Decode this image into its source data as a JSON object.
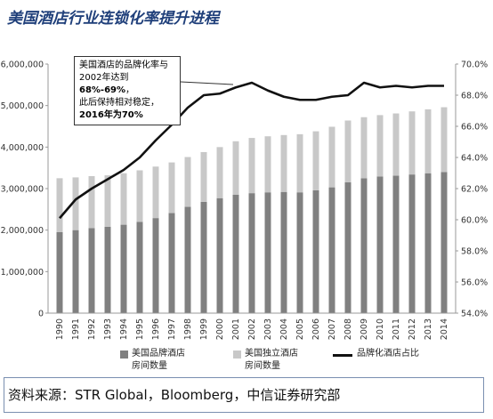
{
  "page": {
    "title": "美国酒店行业连锁化率提升进程"
  },
  "annotation": {
    "line1": "美国酒店的品牌化率与",
    "line2_prefix": "2002年达到",
    "line2_bold": "68%-69%",
    "line2_suffix": "，",
    "line3": "此后保持相对稳定，",
    "line4_prefix": "2016年为",
    "line4_bold": "70%"
  },
  "legend": {
    "branded_line1": "美国品牌酒店",
    "branded_line2": "房间数量",
    "independent_line1": "美国独立酒店",
    "independent_line2": "房间数量",
    "ratio": "品牌化酒店占比"
  },
  "source": "资料来源：STR Global，Bloomberg，中信证券研究部",
  "colors": {
    "branded": "#808080",
    "independent": "#c8c8c8",
    "ratio_line": "#111111",
    "title": "#1f3f7a"
  },
  "chart_data": {
    "type": "bar",
    "stacked": true,
    "categories": [
      "1990",
      "1991",
      "1992",
      "1993",
      "1994",
      "1995",
      "1996",
      "1997",
      "1998",
      "1999",
      "2000",
      "2001",
      "2002",
      "2003",
      "2004",
      "2005",
      "2006",
      "2007",
      "2008",
      "2009",
      "2010",
      "2011",
      "2012",
      "2013",
      "2014"
    ],
    "series": [
      {
        "name": "美国品牌酒店房间数量",
        "values": [
          1950000,
          2000000,
          2050000,
          2080000,
          2130000,
          2200000,
          2290000,
          2410000,
          2560000,
          2680000,
          2770000,
          2850000,
          2890000,
          2910000,
          2920000,
          2910000,
          2960000,
          3030000,
          3150000,
          3250000,
          3290000,
          3310000,
          3340000,
          3370000,
          3400000
        ]
      },
      {
        "name": "美国独立酒店房间数量",
        "values": [
          1300000,
          1270000,
          1250000,
          1240000,
          1240000,
          1240000,
          1240000,
          1220000,
          1200000,
          1200000,
          1230000,
          1290000,
          1330000,
          1350000,
          1370000,
          1400000,
          1420000,
          1460000,
          1490000,
          1470000,
          1480000,
          1500000,
          1520000,
          1540000,
          1560000
        ]
      }
    ],
    "line_series": {
      "name": "品牌化酒店占比",
      "axis": "right",
      "values": [
        60.1,
        61.3,
        62.0,
        62.6,
        63.2,
        64.0,
        65.1,
        66.1,
        67.2,
        68.0,
        68.1,
        68.5,
        68.8,
        68.3,
        67.9,
        67.7,
        67.7,
        67.9,
        68.0,
        68.8,
        68.5,
        68.6,
        68.5,
        68.6,
        68.6
      ]
    },
    "left_axis": {
      "ylim": [
        0,
        6000000
      ],
      "ticks": [
        "0",
        "1,000,000",
        "2,000,000",
        "3,000,000",
        "4,000,000",
        "5,000,000",
        "6,000,000"
      ]
    },
    "right_axis": {
      "ylim": [
        54,
        70
      ],
      "ticks": [
        "54.0%",
        "56.0%",
        "58.0%",
        "60.0%",
        "62.0%",
        "64.0%",
        "66.0%",
        "68.0%",
        "70.0%"
      ]
    },
    "grid": false,
    "legend_position": "bottom"
  }
}
